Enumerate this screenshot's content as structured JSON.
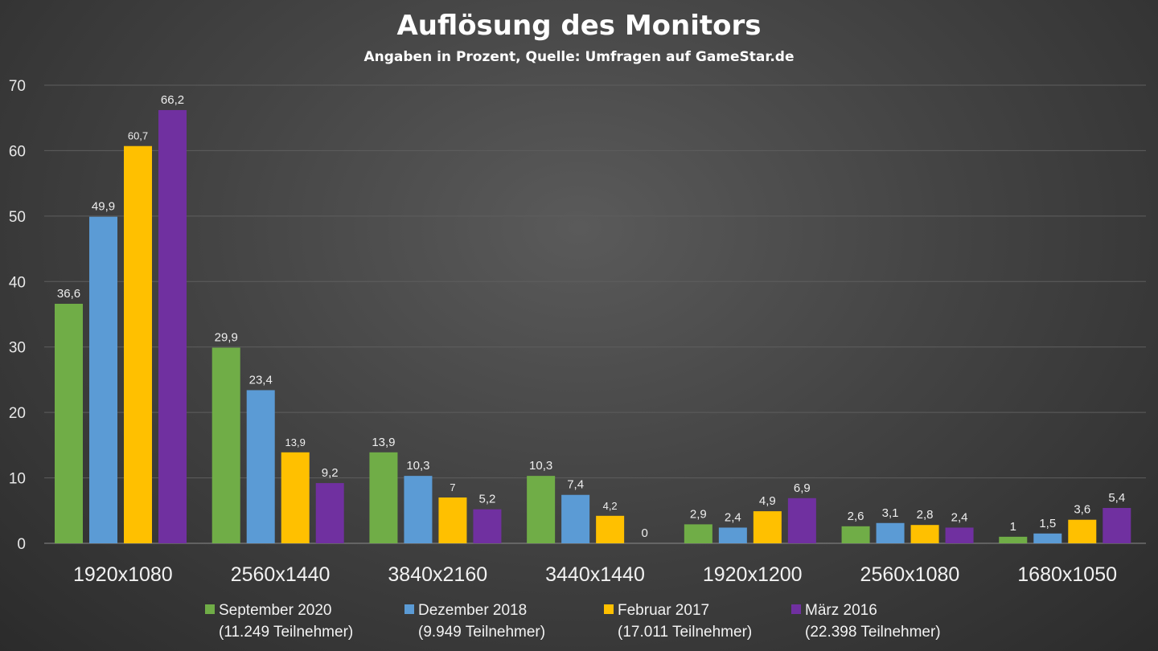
{
  "chart_data": {
    "type": "bar",
    "title": "Auflösung des Monitors",
    "subtitle": "Angaben in Prozent, Quelle: Umfragen auf GameStar.de",
    "categories": [
      "1920x1080",
      "2560x1440",
      "3840x2160",
      "3440x1440",
      "1920x1200",
      "2560x1080",
      "1680x1050"
    ],
    "series": [
      {
        "name": "September 2020",
        "note": "(11.249 Teilnehmer)",
        "color": "#70ad47",
        "values": [
          36.6,
          29.9,
          13.9,
          10.3,
          2.9,
          2.6,
          1
        ]
      },
      {
        "name": "Dezember 2018",
        "note": "(9.949 Teilnehmer)",
        "color": "#5b9bd5",
        "values": [
          49.9,
          23.4,
          10.3,
          7.4,
          2.4,
          3.1,
          1.5
        ]
      },
      {
        "name": "Februar 2017",
        "note": "(17.011 Teilnehmer)",
        "color": "#ffc000",
        "values": [
          60.7,
          13.9,
          7,
          4.2,
          4.9,
          2.8,
          3.6
        ]
      },
      {
        "name": "März 2016",
        "note": "(22.398 Teilnehmer)",
        "color": "#7030a0",
        "values": [
          66.2,
          9.2,
          5.2,
          0,
          6.9,
          2.4,
          5.4
        ]
      }
    ],
    "yticks": [
      "0",
      "10",
      "20",
      "30",
      "40",
      "50",
      "60",
      "70"
    ],
    "ylim": [
      0,
      70
    ],
    "grid": true,
    "legend": "bottom",
    "decimal_separator": ","
  }
}
